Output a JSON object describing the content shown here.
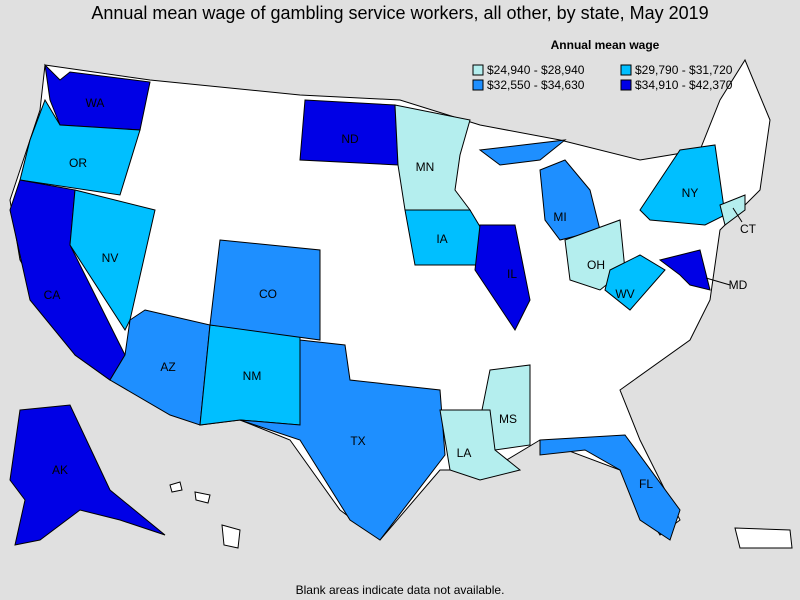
{
  "title": "Annual mean wage of gambling service workers, all other, by state, May 2019",
  "legend": {
    "title": "Annual mean wage",
    "items": [
      {
        "label": "$24,940 - $28,940",
        "color": "#b4eeee"
      },
      {
        "label": "$29,790 - $31,720",
        "color": "#00bfff"
      },
      {
        "label": "$32,550 - $34,630",
        "color": "#1e8fff"
      },
      {
        "label": "$34,910 - $42,370",
        "color": "#0000e6"
      }
    ]
  },
  "states": [
    {
      "label": "WA",
      "bin": 3
    },
    {
      "label": "OR",
      "bin": 1
    },
    {
      "label": "CA",
      "bin": 3
    },
    {
      "label": "NV",
      "bin": 1
    },
    {
      "label": "AZ",
      "bin": 2
    },
    {
      "label": "NM",
      "bin": 1
    },
    {
      "label": "CO",
      "bin": 2
    },
    {
      "label": "TX",
      "bin": 2
    },
    {
      "label": "ND",
      "bin": 3
    },
    {
      "label": "MN",
      "bin": 0
    },
    {
      "label": "IA",
      "bin": 1
    },
    {
      "label": "IL",
      "bin": 3
    },
    {
      "label": "MI",
      "bin": 2
    },
    {
      "label": "OH",
      "bin": 0
    },
    {
      "label": "WV",
      "bin": 1
    },
    {
      "label": "MD",
      "bin": 3
    },
    {
      "label": "NY",
      "bin": 1
    },
    {
      "label": "CT",
      "bin": 0
    },
    {
      "label": "MS",
      "bin": 0
    },
    {
      "label": "LA",
      "bin": 0
    },
    {
      "label": "FL",
      "bin": 2
    },
    {
      "label": "AK",
      "bin": 3
    }
  ],
  "footnote": "Blank areas indicate data not available."
}
